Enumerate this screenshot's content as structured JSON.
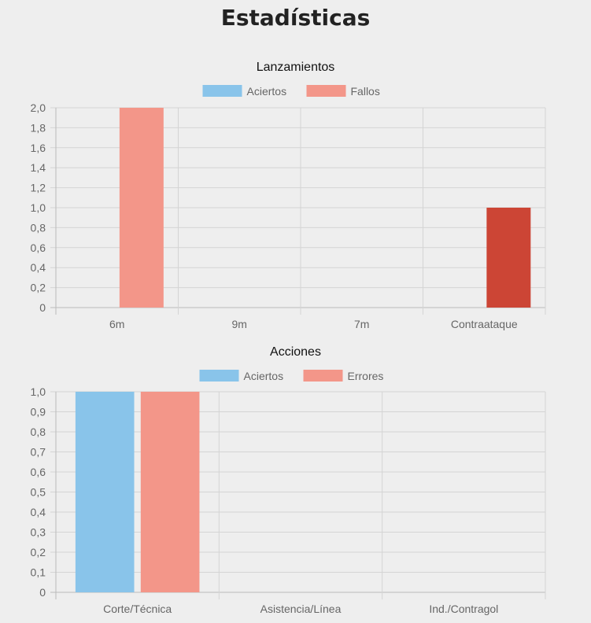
{
  "page_title": "Estadísticas",
  "chart_data": [
    {
      "type": "bar",
      "title": "Lanzamientos",
      "categories": [
        "6m",
        "9m",
        "7m",
        "Contraataque"
      ],
      "series": [
        {
          "name": "Aciertos",
          "values": [
            0,
            0,
            0,
            0
          ],
          "color": "#89c4ea"
        },
        {
          "name": "Fallos",
          "values": [
            2,
            0,
            0,
            1
          ],
          "color": "#f39689"
        }
      ],
      "highlighted": {
        "series": 1,
        "index": 3,
        "color": "#cc4535"
      },
      "ylim": [
        0,
        2
      ],
      "yticks": [
        "0",
        "0,2",
        "0,4",
        "0,6",
        "0,8",
        "1,0",
        "1,2",
        "1,4",
        "1,6",
        "1,8",
        "2,0"
      ],
      "grid": true,
      "legend": "top"
    },
    {
      "type": "bar",
      "title": "Acciones",
      "categories": [
        "Corte/Técnica",
        "Asistencia/Línea",
        "Ind./Contragol"
      ],
      "series": [
        {
          "name": "Aciertos",
          "values": [
            1,
            0,
            0
          ],
          "color": "#89c4ea"
        },
        {
          "name": "Errores",
          "values": [
            1,
            0,
            0
          ],
          "color": "#f39689"
        }
      ],
      "ylim": [
        0,
        1
      ],
      "yticks": [
        "0",
        "0,1",
        "0,2",
        "0,3",
        "0,4",
        "0,5",
        "0,6",
        "0,7",
        "0,8",
        "0,9",
        "1,0"
      ],
      "grid": true,
      "legend": "top"
    }
  ]
}
